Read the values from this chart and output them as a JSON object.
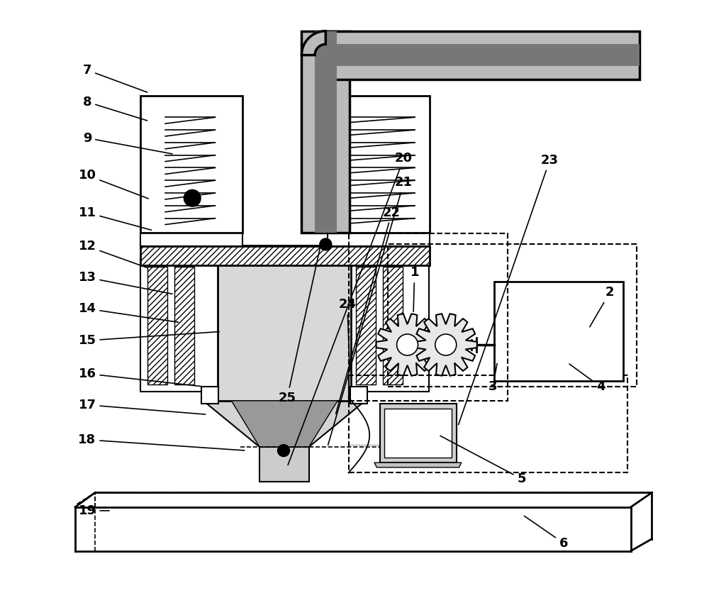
{
  "bg_color": "#ffffff",
  "label_fontsize": 13,
  "label_fontweight": "bold",
  "leader_lw": 1.2,
  "labels_info": [
    [
      7,
      0.055,
      0.885,
      0.158,
      0.847
    ],
    [
      8,
      0.055,
      0.832,
      0.158,
      0.8
    ],
    [
      9,
      0.055,
      0.772,
      0.2,
      0.745
    ],
    [
      10,
      0.055,
      0.71,
      0.16,
      0.67
    ],
    [
      11,
      0.055,
      0.648,
      0.165,
      0.618
    ],
    [
      12,
      0.055,
      0.592,
      0.158,
      0.555
    ],
    [
      13,
      0.055,
      0.54,
      0.2,
      0.512
    ],
    [
      14,
      0.055,
      0.488,
      0.21,
      0.465
    ],
    [
      15,
      0.055,
      0.435,
      0.278,
      0.45
    ],
    [
      16,
      0.055,
      0.38,
      0.252,
      0.358
    ],
    [
      17,
      0.055,
      0.328,
      0.255,
      0.312
    ],
    [
      18,
      0.055,
      0.27,
      0.32,
      0.252
    ],
    [
      19,
      0.055,
      0.152,
      0.095,
      0.152
    ],
    [
      1,
      0.6,
      0.548,
      0.598,
      0.48
    ],
    [
      2,
      0.925,
      0.515,
      0.89,
      0.455
    ],
    [
      3,
      0.73,
      0.358,
      0.738,
      0.4
    ],
    [
      4,
      0.91,
      0.358,
      0.855,
      0.398
    ],
    [
      5,
      0.778,
      0.205,
      0.64,
      0.278
    ],
    [
      6,
      0.848,
      0.098,
      0.78,
      0.145
    ],
    [
      20,
      0.582,
      0.738,
      0.388,
      0.225
    ],
    [
      21,
      0.582,
      0.698,
      0.455,
      0.258
    ],
    [
      22,
      0.562,
      0.648,
      0.468,
      0.31
    ],
    [
      23,
      0.825,
      0.735,
      0.672,
      0.292
    ],
    [
      24,
      0.488,
      0.495,
      0.492,
      0.388
    ],
    [
      25,
      0.388,
      0.34,
      0.445,
      0.6
    ]
  ]
}
